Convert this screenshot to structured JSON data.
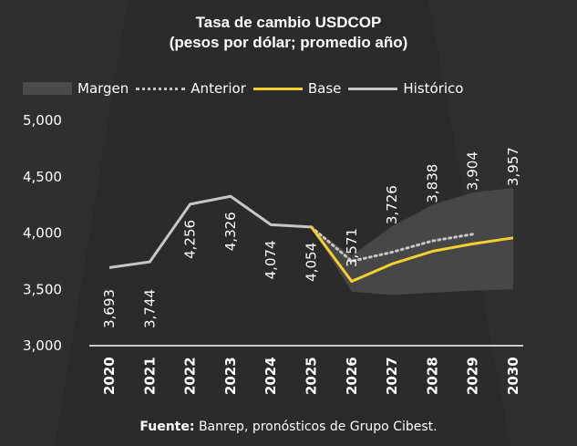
{
  "title_line1": "Tasa de cambio USDCOP",
  "title_line2": "(pesos por dólar; promedio año)",
  "footer": {
    "label": "Fuente:",
    "text": "Banrep, pronósticos de Grupo Cibest."
  },
  "colors": {
    "background": "#2b2b2b",
    "historico": "#c9c5c2",
    "base": "#f2d02d",
    "anterior": "#c9c5c2",
    "margen": "#4a4a4a",
    "text": "#ffffff"
  },
  "chart_data": {
    "type": "line",
    "title": "Tasa de cambio USDCOP (pesos por dólar; promedio año)",
    "x": [
      "2020",
      "2021",
      "2022",
      "2023",
      "2024",
      "2025",
      "2026",
      "2027",
      "2028",
      "2029",
      "2030"
    ],
    "ylim": [
      3000,
      5000
    ],
    "yticks": [
      "5,000",
      "4,500",
      "4,000",
      "3,500",
      "3,000"
    ],
    "ytick_values": [
      5000,
      4500,
      4000,
      3500,
      3000
    ],
    "legend_position": "top",
    "grid": false,
    "legend": [
      "Margen",
      "Anterior",
      "Base",
      "Histórico"
    ],
    "series": [
      {
        "name": "Histórico",
        "style": "solid",
        "x": [
          "2020",
          "2021",
          "2022",
          "2023",
          "2024",
          "2025"
        ],
        "values": [
          3693,
          3744,
          4256,
          4326,
          4074,
          4054
        ],
        "labels": [
          "3,693",
          "3,744",
          "4,256",
          "4,326",
          "4,074",
          "4,054"
        ]
      },
      {
        "name": "Base",
        "style": "solid",
        "x": [
          "2025",
          "2026",
          "2027",
          "2028",
          "2029",
          "2030"
        ],
        "values": [
          4054,
          3571,
          3726,
          3838,
          3904,
          3957
        ],
        "labels": [
          "",
          "3,571",
          "3,726",
          "3,838",
          "3,904",
          "3,957"
        ]
      },
      {
        "name": "Anterior",
        "style": "dotted",
        "x": [
          "2025",
          "2026",
          "2027",
          "2028",
          "2029"
        ],
        "values": [
          4054,
          3750,
          3830,
          3930,
          3990
        ]
      },
      {
        "name": "Margen",
        "style": "band",
        "x": [
          "2025",
          "2026",
          "2027",
          "2028",
          "2029",
          "2030"
        ],
        "upper": [
          4054,
          3800,
          4060,
          4250,
          4360,
          4400
        ],
        "lower": [
          4054,
          3480,
          3450,
          3470,
          3490,
          3500
        ]
      }
    ]
  }
}
